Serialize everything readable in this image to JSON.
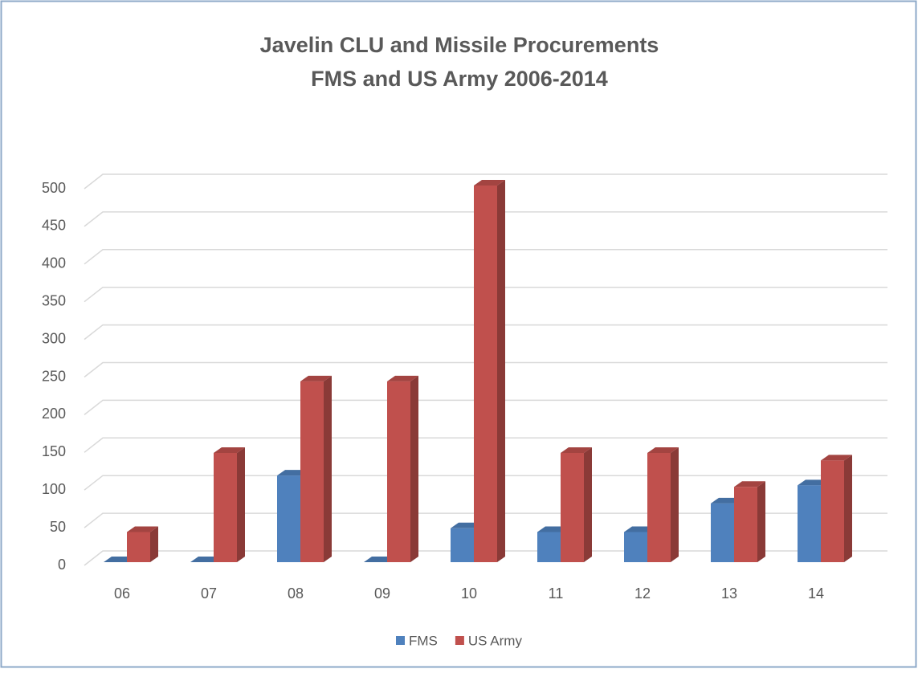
{
  "chart_data": {
    "type": "bar3d",
    "title": "Javelin CLU and Missile Procurements",
    "subtitle": "FMS and US Army 2006-2014",
    "categories": [
      "06",
      "07",
      "08",
      "09",
      "10",
      "11",
      "12",
      "13",
      "14"
    ],
    "series": [
      {
        "name": "FMS",
        "color": "#4f81bd",
        "values": [
          0,
          0,
          115,
          0,
          45,
          40,
          40,
          78,
          102
        ]
      },
      {
        "name": "US Army",
        "color": "#c0504d",
        "values": [
          40,
          145,
          240,
          240,
          500,
          145,
          145,
          100,
          135
        ]
      }
    ],
    "ylim": [
      0,
      500
    ],
    "yticks": [
      0,
      50,
      100,
      150,
      200,
      250,
      300,
      350,
      400,
      450,
      500
    ],
    "grid": true,
    "legend": "bottom"
  }
}
